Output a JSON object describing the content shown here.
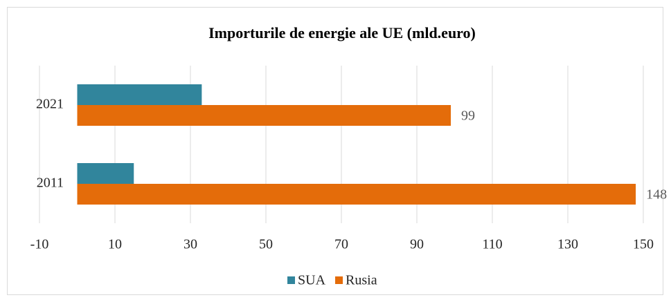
{
  "chart_data": {
    "type": "barh",
    "title": "Importurile de energie ale UE (mld.euro)",
    "categories": [
      "2021",
      "2011"
    ],
    "series": [
      {
        "name": "SUA",
        "color": "#31859c",
        "values": [
          33,
          15
        ],
        "show_labels": false
      },
      {
        "name": "Rusia",
        "color": "#e46c0a",
        "values": [
          99,
          148
        ],
        "show_labels": true
      }
    ],
    "xlim": [
      -10,
      150
    ],
    "xticks": [
      -10,
      10,
      30,
      50,
      70,
      90,
      110,
      130,
      150
    ],
    "grid": true,
    "legend": "bottom"
  }
}
